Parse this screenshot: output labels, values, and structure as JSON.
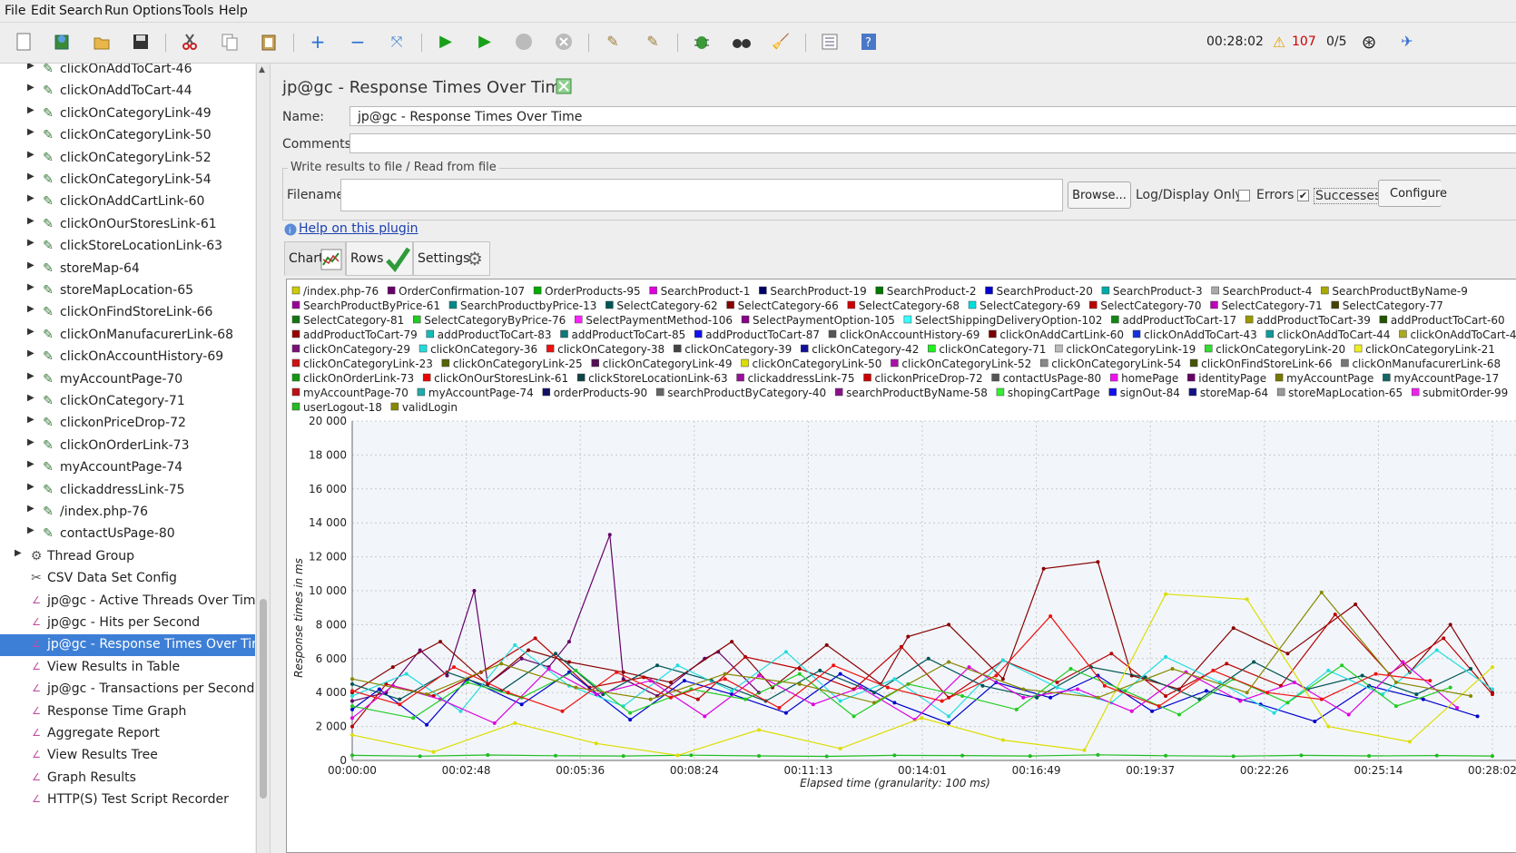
{
  "menu": [
    "File",
    "Edit",
    "Search",
    "Run",
    "Options",
    "Tools",
    "Help"
  ],
  "toolbar": {
    "elapsed": "00:28:02",
    "warnings": "107",
    "threads": "0/5",
    "icons": [
      "new-icon",
      "templates-icon",
      "open-icon",
      "save-icon",
      "cut-icon",
      "copy-icon",
      "paste-icon",
      "expand-icon",
      "collapse-icon",
      "toggle-icon",
      "start-icon",
      "start-no-pause-icon",
      "stop-icon",
      "shutdown-icon",
      "clear-icon",
      "clear-all-icon",
      "debug-icon",
      "search-icon",
      "reset-search-icon",
      "function-helper-icon",
      "help-icon"
    ]
  },
  "tree": {
    "items": [
      {
        "label": "clickOnAddToCart-46",
        "level": 2
      },
      {
        "label": "clickOnAddToCart-44",
        "level": 2
      },
      {
        "label": "clickOnCategoryLink-49",
        "level": 2
      },
      {
        "label": "clickOnCategoryLink-50",
        "level": 2
      },
      {
        "label": "clickOnCategoryLink-52",
        "level": 2
      },
      {
        "label": "clickOnCategoryLink-54",
        "level": 2
      },
      {
        "label": "clickOnAddCartLink-60",
        "level": 2
      },
      {
        "label": "clickOnOurStoresLink-61",
        "level": 2
      },
      {
        "label": "clickStoreLocationLink-63",
        "level": 2
      },
      {
        "label": "storeMap-64",
        "level": 2
      },
      {
        "label": "storeMapLocation-65",
        "level": 2
      },
      {
        "label": "clickOnFindStoreLink-66",
        "level": 2
      },
      {
        "label": "clickOnManufacurerLink-68",
        "level": 2
      },
      {
        "label": "clickOnAccountHistory-69",
        "level": 2
      },
      {
        "label": "myAccountPage-70",
        "level": 2
      },
      {
        "label": "clickOnCategory-71",
        "level": 2
      },
      {
        "label": "clickonPriceDrop-72",
        "level": 2
      },
      {
        "label": "clickOnOrderLink-73",
        "level": 2
      },
      {
        "label": "myAccountPage-74",
        "level": 2
      },
      {
        "label": "clickaddressLink-75",
        "level": 2
      },
      {
        "label": "/index.php-76",
        "level": 2
      },
      {
        "label": "contactUsPage-80",
        "level": 2
      },
      {
        "label": "Thread Group",
        "level": 1
      },
      {
        "label": "CSV Data Set Config",
        "level": 1
      },
      {
        "label": "jp@gc - Active Threads Over Time",
        "level": 1
      },
      {
        "label": "jp@gc - Hits per Second",
        "level": 1
      },
      {
        "label": "jp@gc - Response Times Over Time",
        "level": 1,
        "selected": true
      },
      {
        "label": "View Results in Table",
        "level": 1
      },
      {
        "label": "jp@gc - Transactions per Second",
        "level": 1
      },
      {
        "label": "Response Time Graph",
        "level": 1
      },
      {
        "label": "Aggregate Report",
        "level": 1
      },
      {
        "label": "View Results Tree",
        "level": 1
      },
      {
        "label": "Graph Results",
        "level": 1
      },
      {
        "label": "HTTP(S) Test Script Recorder",
        "level": 1
      }
    ]
  },
  "panel": {
    "title": "jp@gc - Response Times Over Time",
    "name_label": "Name:",
    "name_value": "jp@gc - Response Times Over Time",
    "comments_label": "Comments:",
    "comments_value": "",
    "fieldset_legend": "Write results to file / Read from file",
    "filename_label": "Filename",
    "filename_value": "",
    "browse": "Browse...",
    "log_only": "Log/Display Only:",
    "errors": "Errors",
    "errors_checked": false,
    "successes": "Successes",
    "successes_checked": true,
    "configure": "Configure",
    "help_link": "Help on this plugin",
    "tabs": [
      "Chart",
      "Rows",
      "Settings"
    ]
  },
  "chart_data": {
    "type": "line",
    "ylabel": "Response times in ms",
    "xlabel": "Elapsed time (granularity: 100 ms)",
    "yticks": [
      "20 000",
      "18 000",
      "16 000",
      "14 000",
      "12 000",
      "10 000",
      "8 000",
      "6 000",
      "4 000",
      "2 000",
      "0"
    ],
    "ylim": [
      0,
      20000
    ],
    "xticks": [
      "00:00:00",
      "00:02:48",
      "00:05:36",
      "00:08:24",
      "00:11:13",
      "00:14:01",
      "00:16:49",
      "00:19:37",
      "00:22:26",
      "00:25:14",
      "00:28:02"
    ],
    "x_range_seconds": [
      0,
      1682
    ],
    "grid": true,
    "legend_position": "top",
    "legend": [
      {
        "name": "/index.php-76",
        "color": "#cccc00"
      },
      {
        "name": "OrderConfirmation-107",
        "color": "#660066"
      },
      {
        "name": "OrderProducts-95",
        "color": "#00aa00"
      },
      {
        "name": "SearchProduct-1",
        "color": "#dd00dd"
      },
      {
        "name": "SearchProduct-19",
        "color": "#000066"
      },
      {
        "name": "SearchProduct-2",
        "color": "#007700"
      },
      {
        "name": "SearchProduct-20",
        "color": "#0000cc"
      },
      {
        "name": "SearchProduct-3",
        "color": "#00aaaa"
      },
      {
        "name": "SearchProduct-4",
        "color": "#aaaaaa"
      },
      {
        "name": "SearchProductByName-9",
        "color": "#aaaa00"
      },
      {
        "name": "SearchProductByPrice-61",
        "color": "#990099"
      },
      {
        "name": "SearchProductbyPrice-13",
        "color": "#008888"
      },
      {
        "name": "SelectCategory-62",
        "color": "#005555"
      },
      {
        "name": "SelectCategory-66",
        "color": "#880000"
      },
      {
        "name": "SelectCategory-68",
        "color": "#cc0000"
      },
      {
        "name": "SelectCategory-69",
        "color": "#00dddd"
      },
      {
        "name": "SelectCategory-70",
        "color": "#bb0000"
      },
      {
        "name": "SelectCategory-71",
        "color": "#bb00bb"
      },
      {
        "name": "SelectCategory-77",
        "color": "#444400"
      },
      {
        "name": "SelectCategory-81",
        "color": "#117711"
      },
      {
        "name": "SelectCategoryByPrice-76",
        "color": "#22cc22"
      },
      {
        "name": "SelectPaymentMethod-106",
        "color": "#ff22ff"
      },
      {
        "name": "SelectPaymentOption-105",
        "color": "#880088"
      },
      {
        "name": "SelectShippingDeliveryOption-102",
        "color": "#33ffff"
      },
      {
        "name": "addProductToCart-17",
        "color": "#118811"
      },
      {
        "name": "addProductToCart-39",
        "color": "#999900"
      },
      {
        "name": "addProductToCart-60",
        "color": "#225500"
      },
      {
        "name": "addProductToCart-79",
        "color": "#990000"
      },
      {
        "name": "addProductToCart-83",
        "color": "#11bbbb"
      },
      {
        "name": "addProductToCart-85",
        "color": "#117777"
      },
      {
        "name": "addProductToCart-87",
        "color": "#1111ee"
      },
      {
        "name": "clickOnAccountHistory-69",
        "color": "#555555"
      },
      {
        "name": "clickOnAddCartLink-60",
        "color": "#770000"
      },
      {
        "name": "clickOnAddToCart-43",
        "color": "#1133dd"
      },
      {
        "name": "clickOnAddToCart-44",
        "color": "#119999"
      },
      {
        "name": "clickOnAddToCart-46",
        "color": "#aaaa22"
      },
      {
        "name": "clickOnCategory-29",
        "color": "#771177"
      },
      {
        "name": "clickOnCategory-36",
        "color": "#22dddd"
      },
      {
        "name": "clickOnCategory-38",
        "color": "#ee1111"
      },
      {
        "name": "clickOnCategory-39",
        "color": "#444444"
      },
      {
        "name": "clickOnCategory-42",
        "color": "#111199"
      },
      {
        "name": "clickOnCategory-71",
        "color": "#22ee22"
      },
      {
        "name": "clickOnCategoryLink-19",
        "color": "#bbbbbb"
      },
      {
        "name": "clickOnCategoryLink-20",
        "color": "#33dd33"
      },
      {
        "name": "clickOnCategoryLink-21",
        "color": "#eeee22"
      },
      {
        "name": "clickOnCategoryLink-23",
        "color": "#cc1111"
      },
      {
        "name": "clickOnCategoryLink-25",
        "color": "#556600"
      },
      {
        "name": "clickOnCategoryLink-49",
        "color": "#551155"
      },
      {
        "name": "clickOnCategoryLink-50",
        "color": "#dddd00"
      },
      {
        "name": "clickOnCategoryLink-52",
        "color": "#aa11aa"
      },
      {
        "name": "clickOnCategoryLink-54",
        "color": "#888888"
      },
      {
        "name": "clickOnFindStoreLink-66",
        "color": "#445500"
      },
      {
        "name": "clickOnManufacurerLink-68",
        "color": "#777777"
      },
      {
        "name": "clickOnOrderLink-73",
        "color": "#119911"
      },
      {
        "name": "clickOnOurStoresLink-61",
        "color": "#ee0000"
      },
      {
        "name": "clickStoreLocationLink-63",
        "color": "#114444"
      },
      {
        "name": "clickaddressLink-75",
        "color": "#991199"
      },
      {
        "name": "clickonPriceDrop-72",
        "color": "#cc0000"
      },
      {
        "name": "contactUsPage-80",
        "color": "#555555"
      },
      {
        "name": "homePage",
        "color": "#ee11ee"
      },
      {
        "name": "identityPage",
        "color": "#660066"
      },
      {
        "name": "myAccountPage",
        "color": "#777700"
      },
      {
        "name": "myAccountPage-17",
        "color": "#116666"
      },
      {
        "name": "myAccountPage-70",
        "color": "#bb1111"
      },
      {
        "name": "myAccountPage-74",
        "color": "#22aaaa"
      },
      {
        "name": "orderProducts-90",
        "color": "#111166"
      },
      {
        "name": "searchProductByCategory-40",
        "color": "#666666"
      },
      {
        "name": "searchProductByName-58",
        "color": "#881188"
      },
      {
        "name": "shopingCartPage",
        "color": "#33ee33"
      },
      {
        "name": "signOut-84",
        "color": "#1111ee"
      },
      {
        "name": "storeMap-64",
        "color": "#111188"
      },
      {
        "name": "storeMapLocation-65",
        "color": "#999999"
      },
      {
        "name": "submitOrder-99",
        "color": "#ee22ee"
      },
      {
        "name": "userLogout-18",
        "color": "#22bb22"
      },
      {
        "name": "validLogin",
        "color": "#888800"
      }
    ],
    "series": [
      {
        "name": "OrderConfirmation-107",
        "x": [
          0,
          50,
          100,
          140,
          180,
          200,
          250,
          290,
          320,
          380,
          400,
          450,
          520,
          540,
          600
        ],
        "y": [
          3500,
          4000,
          6500,
          5000,
          10000,
          4500,
          6000,
          5500,
          7000,
          13300,
          4800,
          3800,
          6000,
          6400,
          4000
        ]
      },
      {
        "name": "SelectCategory-66",
        "x": [
          0,
          60,
          130,
          200,
          260,
          320,
          400,
          470,
          560,
          620,
          700,
          780,
          820,
          880,
          960,
          1020,
          1100,
          1150,
          1220,
          1300,
          1380,
          1480,
          1560,
          1620,
          1682
        ],
        "y": [
          4000,
          5500,
          7000,
          4500,
          6500,
          5800,
          5200,
          4600,
          7000,
          4300,
          6800,
          4500,
          7300,
          8000,
          4800,
          11300,
          11700,
          5000,
          4200,
          7800,
          6300,
          9200,
          5200,
          8000,
          4000
        ]
      },
      {
        "name": "SelectCategory-70",
        "x": [
          0,
          50,
          120,
          190,
          270,
          350,
          430,
          510,
          580,
          660,
          740,
          810,
          880,
          960,
          1040,
          1120,
          1200,
          1290,
          1370,
          1450,
          1530,
          1610,
          1682
        ],
        "y": [
          2000,
          4500,
          3800,
          5200,
          7200,
          4300,
          4900,
          3600,
          6100,
          5400,
          4200,
          6700,
          3700,
          5900,
          4600,
          6300,
          3800,
          5700,
          4400,
          8600,
          5100,
          7200,
          3900
        ]
      },
      {
        "name": "SearchProduct-20",
        "x": [
          0,
          40,
          110,
          170,
          250,
          320,
          410,
          490,
          560,
          640,
          720,
          800,
          880,
          950,
          1030,
          1100,
          1180,
          1260,
          1340,
          1420,
          1500,
          1580,
          1660
        ],
        "y": [
          3000,
          4200,
          2100,
          4800,
          3300,
          5200,
          2400,
          4700,
          3900,
          2800,
          5100,
          3400,
          2200,
          4600,
          3700,
          5000,
          2900,
          4100,
          3300,
          2300,
          4400,
          3600,
          2600
        ]
      },
      {
        "name": "SelectCategory-62",
        "x": [
          0,
          70,
          140,
          220,
          300,
          370,
          450,
          530,
          610,
          690,
          770,
          850,
          930,
          1010,
          1090,
          1170,
          1250,
          1330,
          1410,
          1490,
          1570,
          1650
        ],
        "y": [
          4500,
          3600,
          5200,
          4100,
          6300,
          3900,
          5600,
          4700,
          3500,
          5300,
          4000,
          6000,
          4400,
          3700,
          5500,
          4900,
          3600,
          5800,
          4200,
          5000,
          3900,
          5400
        ]
      },
      {
        "name": "clickOnCategory-36",
        "x": [
          0,
          80,
          160,
          240,
          320,
          400,
          480,
          560,
          640,
          720,
          800,
          880,
          960,
          1040,
          1120,
          1200,
          1280,
          1360,
          1440,
          1520,
          1600,
          1682
        ],
        "y": [
          3800,
          5100,
          2900,
          6800,
          4400,
          3200,
          5600,
          4100,
          6400,
          3500,
          4800,
          2600,
          5900,
          4300,
          3400,
          6100,
          4600,
          2800,
          5300,
          3900,
          6500,
          4200
        ]
      },
      {
        "name": "SearchProduct-1",
        "x": [
          0,
          60,
          130,
          210,
          290,
          360,
          440,
          520,
          600,
          680,
          750,
          830,
          910,
          990,
          1070,
          1150,
          1230,
          1310,
          1390,
          1470,
          1550,
          1630
        ],
        "y": [
          2500,
          4400,
          3600,
          2200,
          5400,
          3900,
          4700,
          2600,
          5000,
          3300,
          4300,
          2400,
          5500,
          3700,
          4200,
          2900,
          5200,
          3500,
          4600,
          2700,
          5800,
          3100
        ]
      },
      {
        "name": "SelectCategoryByPrice-76",
        "x": [
          0,
          90,
          170,
          250,
          330,
          410,
          500,
          580,
          660,
          740,
          820,
          900,
          980,
          1060,
          1140,
          1220,
          1300,
          1380,
          1460,
          1540,
          1620
        ],
        "y": [
          3200,
          2500,
          4600,
          3700,
          5300,
          2800,
          4200,
          3600,
          5100,
          2600,
          4500,
          3800,
          3000,
          5400,
          4100,
          2700,
          4800,
          3400,
          5600,
          3200,
          4300
        ]
      },
      {
        "name": "userLogout-18",
        "x": [
          0,
          100,
          200,
          300,
          400,
          500,
          600,
          700,
          800,
          900,
          1000,
          1100,
          1200,
          1300,
          1400,
          1500,
          1600,
          1682
        ],
        "y": [
          300,
          250,
          320,
          280,
          260,
          310,
          270,
          240,
          300,
          290,
          260,
          330,
          280,
          250,
          300,
          270,
          290,
          260
        ]
      },
      {
        "name": "clickOnCategoryLink-50",
        "x": [
          0,
          120,
          240,
          360,
          480,
          600,
          720,
          840,
          960,
          1080,
          1200,
          1320,
          1440,
          1560,
          1682
        ],
        "y": [
          1500,
          500,
          2200,
          1000,
          300,
          1800,
          700,
          2500,
          1200,
          600,
          9800,
          9500,
          2000,
          1100,
          5500
        ]
      },
      {
        "name": "clickOnCategory-38",
        "x": [
          0,
          70,
          150,
          230,
          310,
          390,
          470,
          550,
          630,
          710,
          790,
          870,
          950,
          1030,
          1110,
          1190,
          1270,
          1350,
          1430,
          1510,
          1590
        ],
        "y": [
          4100,
          3300,
          5500,
          4000,
          2900,
          5200,
          3700,
          4800,
          3100,
          5600,
          4300,
          3500,
          5000,
          8500,
          4400,
          3200,
          5300,
          4000,
          3600,
          5100,
          4700
        ]
      },
      {
        "name": "validLogin",
        "x": [
          0,
          110,
          220,
          330,
          440,
          550,
          660,
          770,
          880,
          990,
          1100,
          1210,
          1320,
          1430,
          1540,
          1650
        ],
        "y": [
          4800,
          3900,
          5700,
          4300,
          3600,
          5100,
          4500,
          3400,
          5800,
          4200,
          3700,
          5400,
          4000,
          9900,
          4600,
          3800
        ]
      }
    ]
  }
}
